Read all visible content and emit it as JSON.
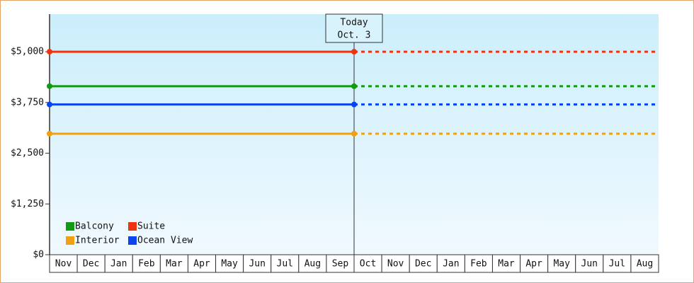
{
  "chart_data": {
    "type": "price-line",
    "categories": [
      "Nov",
      "Dec",
      "Jan",
      "Feb",
      "Mar",
      "Apr",
      "May",
      "Jun",
      "Jul",
      "Aug",
      "Sep",
      "Oct",
      "Nov",
      "Dec",
      "Jan",
      "Feb",
      "Mar",
      "Apr",
      "May",
      "Jun",
      "Jul",
      "Aug"
    ],
    "today_label": "Today",
    "today_date": "Oct. 3",
    "today_index": 11,
    "ylim": [
      0,
      5925
    ],
    "yticks": [
      {
        "value": 0,
        "label": "$0"
      },
      {
        "value": 1250,
        "label": "$1,250"
      },
      {
        "value": 2500,
        "label": "$2,500"
      },
      {
        "value": 3750,
        "label": "$3,750"
      },
      {
        "value": 5000,
        "label": "$5,000"
      }
    ],
    "series": [
      {
        "name": "Balcony",
        "color": "#119911",
        "value": 4150
      },
      {
        "name": "Suite",
        "color": "#ee3311",
        "value": 5000
      },
      {
        "name": "Interior",
        "color": "#f0a010",
        "value": 2980
      },
      {
        "name": "Ocean View",
        "color": "#0a44ee",
        "value": 3700
      }
    ]
  }
}
